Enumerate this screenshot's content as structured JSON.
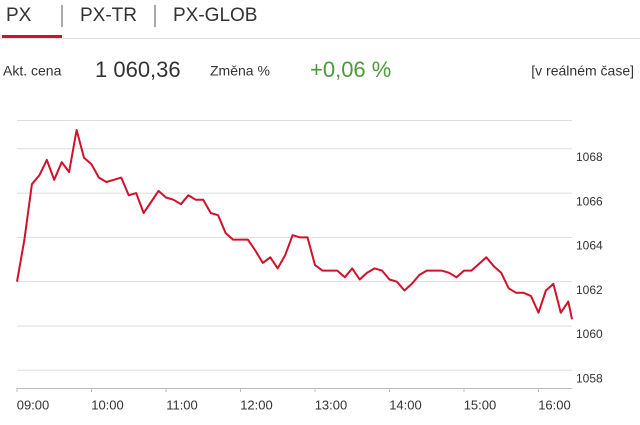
{
  "tabs": [
    "PX",
    "PX-TR",
    "PX-GLOB"
  ],
  "quote": {
    "price_label": "Akt. cena",
    "price": "1 060,36",
    "change_label": "Změna %",
    "change": "+0,06 %",
    "mode": "[v reálném čase]"
  },
  "chart_data": {
    "type": "line",
    "color": "#d0112b",
    "grid": true,
    "x": [
      9.0,
      9.1,
      9.2,
      9.3,
      9.4,
      9.5,
      9.6,
      9.7,
      9.8,
      9.9,
      10.0,
      10.1,
      10.2,
      10.3,
      10.4,
      10.5,
      10.6,
      10.7,
      10.8,
      10.9,
      11.0,
      11.1,
      11.2,
      11.3,
      11.4,
      11.5,
      11.6,
      11.7,
      11.8,
      11.9,
      12.0,
      12.1,
      12.2,
      12.3,
      12.4,
      12.5,
      12.6,
      12.7,
      12.8,
      12.9,
      13.0,
      13.1,
      13.2,
      13.3,
      13.4,
      13.5,
      13.6,
      13.7,
      13.8,
      13.9,
      14.0,
      14.1,
      14.2,
      14.3,
      14.4,
      14.5,
      14.6,
      14.7,
      14.8,
      14.9,
      15.0,
      15.1,
      15.2,
      15.3,
      15.4,
      15.5,
      15.6,
      15.7,
      15.8,
      15.9,
      16.0,
      16.1,
      16.2,
      16.3,
      16.4,
      16.45
    ],
    "values": [
      1062.0,
      1063.9,
      1066.4,
      1066.8,
      1067.5,
      1066.6,
      1067.4,
      1066.95,
      1068.85,
      1067.6,
      1067.3,
      1066.7,
      1066.5,
      1066.6,
      1066.7,
      1065.9,
      1066.0,
      1065.1,
      1065.6,
      1066.1,
      1065.8,
      1065.7,
      1065.5,
      1065.9,
      1065.7,
      1065.7,
      1065.1,
      1065.0,
      1064.2,
      1063.9,
      1063.9,
      1063.9,
      1063.4,
      1062.85,
      1063.1,
      1062.6,
      1063.2,
      1064.1,
      1064.0,
      1064.0,
      1062.75,
      1062.5,
      1062.5,
      1062.5,
      1062.2,
      1062.6,
      1062.1,
      1062.4,
      1062.6,
      1062.5,
      1062.1,
      1062.0,
      1061.6,
      1061.9,
      1062.3,
      1062.5,
      1062.5,
      1062.5,
      1062.4,
      1062.2,
      1062.5,
      1062.5,
      1062.8,
      1063.1,
      1062.7,
      1062.4,
      1061.7,
      1061.5,
      1061.5,
      1061.35,
      1060.6,
      1061.6,
      1061.9,
      1060.6,
      1061.1,
      1060.3
    ],
    "xlim": [
      9,
      16.45
    ],
    "ylim": [
      1057.2,
      1069.3
    ],
    "yticks": [
      1058,
      1060,
      1062,
      1064,
      1066,
      1068
    ],
    "xticks": [
      {
        "value": 9,
        "label": "09:00"
      },
      {
        "value": 10,
        "label": "10:00"
      },
      {
        "value": 11,
        "label": "11:00"
      },
      {
        "value": 12,
        "label": "12:00"
      },
      {
        "value": 13,
        "label": "13:00"
      },
      {
        "value": 14,
        "label": "14:00"
      },
      {
        "value": 15,
        "label": "15:00"
      },
      {
        "value": 16,
        "label": "16:00"
      }
    ]
  }
}
